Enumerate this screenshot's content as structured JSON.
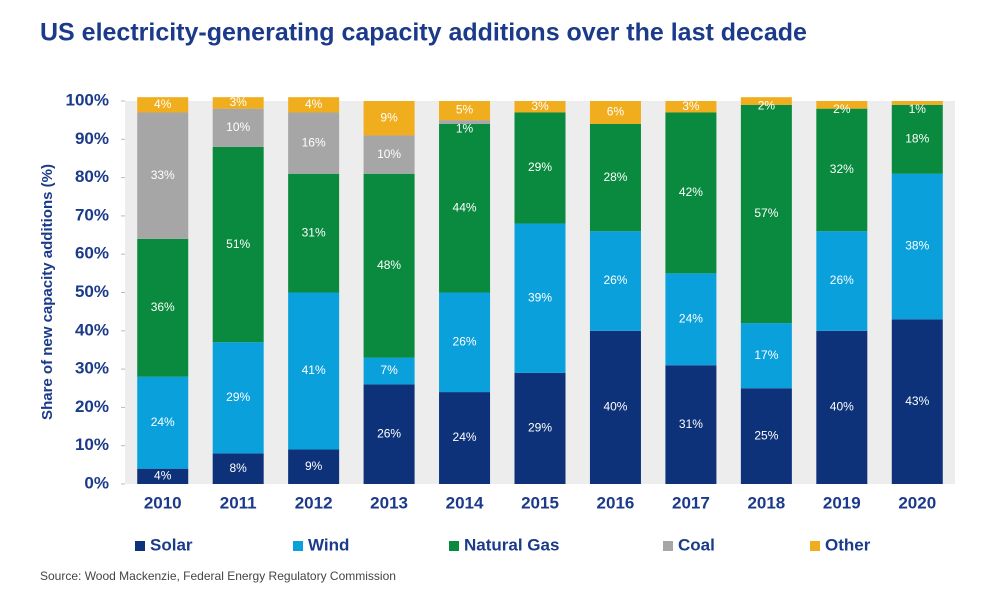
{
  "chart_data": {
    "type": "stacked_bar",
    "title": "US electricity-generating capacity additions over the last decade",
    "y_label": "Share of new capacity additions (%)",
    "source": "Source: Wood Mackenzie, Federal Energy Regulatory Commission",
    "categories": [
      "2010",
      "2011",
      "2012",
      "2013",
      "2014",
      "2015",
      "2016",
      "2017",
      "2018",
      "2019",
      "2020"
    ],
    "ylim": [
      0,
      100
    ],
    "yticks": [
      {
        "value": 0,
        "label": "0%"
      },
      {
        "value": 10,
        "label": "10%"
      },
      {
        "value": 20,
        "label": "20%"
      },
      {
        "value": 30,
        "label": "30%"
      },
      {
        "value": 40,
        "label": "40%"
      },
      {
        "value": 50,
        "label": "50%"
      },
      {
        "value": 60,
        "label": "60%"
      },
      {
        "value": 70,
        "label": "70%"
      },
      {
        "value": 80,
        "label": "80%"
      },
      {
        "value": 90,
        "label": "90%"
      },
      {
        "value": 100,
        "label": "100%"
      }
    ],
    "series": [
      {
        "name": "Solar",
        "color": "#0d3279",
        "values": [
          4,
          8,
          9,
          26,
          24,
          29,
          40,
          31,
          25,
          40,
          43
        ],
        "value_labels": [
          "4%",
          "8%",
          "9%",
          "26%",
          "24%",
          "29%",
          "40%",
          "31%",
          "25%",
          "40%",
          "43%"
        ]
      },
      {
        "name": "Wind",
        "color": "#0aa0dc",
        "values": [
          24,
          29,
          41,
          7,
          26,
          39,
          26,
          24,
          17,
          26,
          38
        ],
        "value_labels": [
          "24%",
          "29%",
          "41%",
          "7%",
          "26%",
          "39%",
          "26%",
          "24%",
          "17%",
          "26%",
          "38%"
        ]
      },
      {
        "name": "Natural Gas",
        "color": "#098a3e",
        "values": [
          36,
          51,
          31,
          48,
          44,
          29,
          28,
          42,
          57,
          32,
          18
        ],
        "value_labels": [
          "36%",
          "51%",
          "31%",
          "48%",
          "44%",
          "29%",
          "28%",
          "42%",
          "57%",
          "32%",
          "18%"
        ]
      },
      {
        "name": "Coal",
        "color": "#a6a6a6",
        "values": [
          33,
          10,
          16,
          10,
          1,
          null,
          null,
          null,
          null,
          null,
          null
        ],
        "value_labels": [
          "33%",
          "10%",
          "16%",
          "10%",
          "1%",
          null,
          null,
          null,
          null,
          null,
          null
        ]
      },
      {
        "name": "Other",
        "color": "#f0ae1e",
        "values": [
          4,
          3,
          4,
          9,
          5,
          3,
          6,
          3,
          2,
          2,
          1
        ],
        "value_labels": [
          "4%",
          "3%",
          "4%",
          "9%",
          "5%",
          "3%",
          "6%",
          "3%",
          "2%",
          "2%",
          "1%"
        ]
      }
    ]
  }
}
